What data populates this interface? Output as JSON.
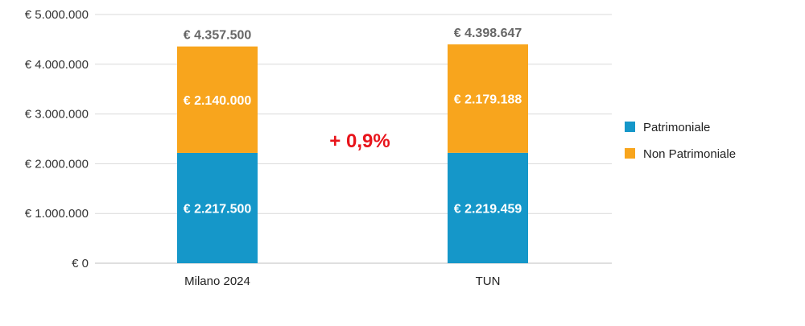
{
  "chart_data": {
    "type": "bar",
    "stacked": true,
    "categories": [
      "Milano 2024",
      "TUN"
    ],
    "series": [
      {
        "name": "Patrimoniale",
        "color": "#1597C9",
        "values": [
          2217500,
          2219459
        ],
        "labels": [
          "€ 2.217.500",
          "€ 2.219.459"
        ]
      },
      {
        "name": "Non Patrimoniale",
        "color": "#F8A51D",
        "values": [
          2140000,
          2179188
        ],
        "labels": [
          "€ 2.140.000",
          "€ 2.179.188"
        ]
      }
    ],
    "totals": [
      4357500,
      4398647
    ],
    "total_labels": [
      "€ 4.357.500",
      "€ 4.398.647"
    ],
    "annotation": "+ 0,9%",
    "annotation_color": "#E8141B",
    "ylim": [
      0,
      5000000
    ],
    "yticks": [
      0,
      1000000,
      2000000,
      3000000,
      4000000,
      5000000
    ],
    "ytick_labels": [
      "€ 0",
      "€ 1.000.000",
      "€ 2.000.000",
      "€ 3.000.000",
      "€ 4.000.000",
      "€ 5.000.000"
    ],
    "grid": true,
    "legend_position": "right",
    "title": "",
    "xlabel": "",
    "ylabel": ""
  }
}
